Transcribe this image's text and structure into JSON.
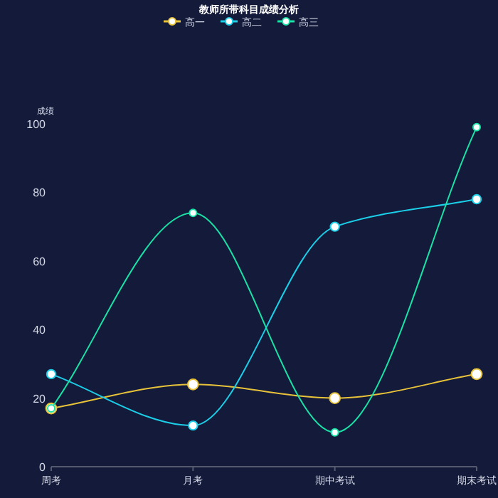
{
  "chart_data": {
    "type": "line",
    "title": "教师所带科目成绩分析",
    "ylabel": "成绩",
    "categories": [
      "周考",
      "月考",
      "期中考试",
      "期末考试"
    ],
    "series": [
      {
        "name": "高一",
        "color": "#e8c33a",
        "values": [
          17,
          24,
          20,
          27
        ]
      },
      {
        "name": "高二",
        "color": "#1ccfe8",
        "values": [
          27,
          12,
          70,
          78
        ]
      },
      {
        "name": "高三",
        "color": "#19e3a6",
        "values": [
          17,
          74,
          10,
          99
        ]
      }
    ],
    "ylim": [
      0,
      100
    ],
    "yticks": [
      0,
      20,
      40,
      60,
      80,
      100
    ],
    "grid": false,
    "legend": "top",
    "marker": "circle",
    "line_style": "solid"
  }
}
